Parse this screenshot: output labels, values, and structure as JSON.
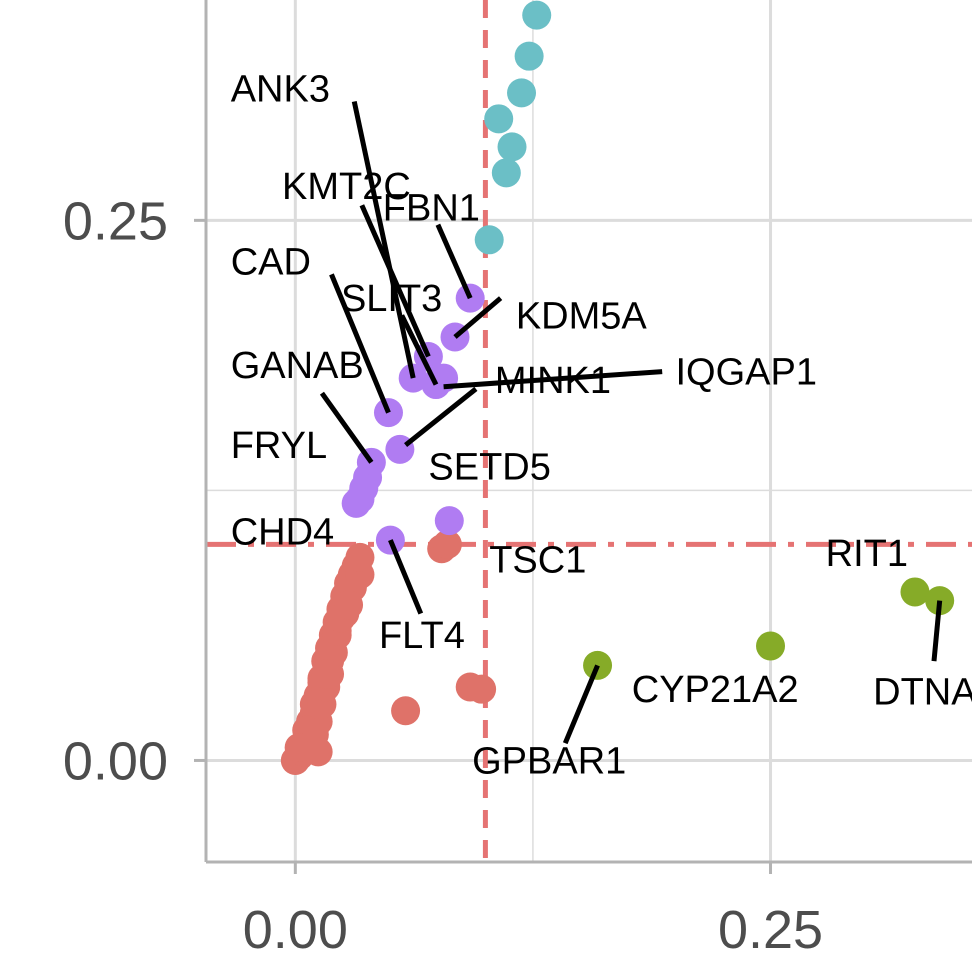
{
  "chart_data": {
    "type": "scatter",
    "title": "",
    "xlabel": "",
    "ylabel": "",
    "xlim": [
      -0.047,
      0.356
    ],
    "ylim": [
      -0.047,
      0.352
    ],
    "grid": true,
    "x_ticks": [
      {
        "value": 0.0,
        "label": "0.00"
      },
      {
        "value": 0.25,
        "label": "0.25"
      }
    ],
    "y_ticks": [
      {
        "value": 0.0,
        "label": "0.00"
      },
      {
        "value": 0.25,
        "label": "0.25"
      }
    ],
    "minor_x": [
      0.125
    ],
    "minor_y": [
      0.125
    ],
    "thresholds": {
      "x": 0.1,
      "y": 0.1,
      "color": "#E57373"
    },
    "colors": {
      "red": "#DF7269",
      "purple": "#B07CF2",
      "cyan": "#6BBFC6",
      "green": "#86AB28",
      "grid": "#dcdcdc",
      "axis": "#b3b3b3",
      "text": "#4d4d4d"
    },
    "series": [
      {
        "color": "red",
        "points": [
          [
            0.0,
            0.0
          ],
          [
            0.002,
            0.002
          ],
          [
            0.004,
            0.006
          ],
          [
            0.006,
            0.01
          ],
          [
            0.008,
            0.016
          ],
          [
            0.01,
            0.022
          ],
          [
            0.012,
            0.03
          ],
          [
            0.014,
            0.038
          ],
          [
            0.016,
            0.046
          ],
          [
            0.018,
            0.052
          ],
          [
            0.02,
            0.058
          ],
          [
            0.022,
            0.064
          ],
          [
            0.024,
            0.07
          ],
          [
            0.026,
            0.076
          ],
          [
            0.028,
            0.082
          ],
          [
            0.03,
            0.086
          ],
          [
            0.032,
            0.09
          ],
          [
            0.03,
            0.08
          ],
          [
            0.026,
            0.068
          ],
          [
            0.022,
            0.058
          ],
          [
            0.018,
            0.046
          ],
          [
            0.014,
            0.036
          ],
          [
            0.01,
            0.026
          ],
          [
            0.008,
            0.018
          ],
          [
            0.01,
            0.012
          ],
          [
            0.012,
            0.018
          ],
          [
            0.014,
            0.026
          ],
          [
            0.016,
            0.034
          ],
          [
            0.018,
            0.04
          ],
          [
            0.02,
            0.05
          ],
          [
            0.022,
            0.06
          ],
          [
            0.024,
            0.066
          ],
          [
            0.004,
            0.004
          ],
          [
            0.006,
            0.008
          ],
          [
            0.008,
            0.012
          ],
          [
            0.034,
            0.086
          ],
          [
            0.034,
            0.094
          ],
          [
            0.028,
            0.072
          ],
          [
            0.016,
            0.04
          ],
          [
            0.006,
            0.014
          ],
          [
            0.002,
            0.006
          ],
          [
            0.012,
            0.004
          ],
          [
            0.058,
            0.023
          ],
          [
            0.092,
            0.034
          ],
          [
            0.098,
            0.033
          ],
          [
            0.077,
            0.098
          ],
          [
            0.08,
            0.1
          ]
        ]
      },
      {
        "color": "purple",
        "points": [
          [
            0.049,
            0.161
          ],
          [
            0.062,
            0.177
          ],
          [
            0.07,
            0.187
          ],
          [
            0.078,
            0.177
          ],
          [
            0.084,
            0.196
          ],
          [
            0.092,
            0.214
          ],
          [
            0.074,
            0.174
          ],
          [
            0.055,
            0.144
          ],
          [
            0.04,
            0.138
          ],
          [
            0.038,
            0.131
          ],
          [
            0.036,
            0.126
          ],
          [
            0.034,
            0.121
          ],
          [
            0.032,
            0.119
          ],
          [
            0.05,
            0.102
          ],
          [
            0.081,
            0.111
          ]
        ]
      },
      {
        "color": "cyan",
        "points": [
          [
            0.102,
            0.241
          ],
          [
            0.111,
            0.272
          ],
          [
            0.114,
            0.284
          ],
          [
            0.107,
            0.297
          ],
          [
            0.119,
            0.309
          ],
          [
            0.123,
            0.326
          ],
          [
            0.127,
            0.345
          ]
        ]
      },
      {
        "color": "green",
        "points": [
          [
            0.159,
            0.044
          ],
          [
            0.25,
            0.053
          ],
          [
            0.326,
            0.078
          ],
          [
            0.339,
            0.074
          ]
        ]
      }
    ],
    "labels": [
      {
        "text": "ANK3",
        "x": -0.034,
        "y": 0.305,
        "line_from": [
          0.031,
          0.305
        ],
        "line_to": [
          0.062,
          0.177
        ]
      },
      {
        "text": "KMT2C",
        "x": -0.007,
        "y": 0.26,
        "line_from": [
          0.035,
          0.257
        ],
        "line_to": [
          0.07,
          0.187
        ]
      },
      {
        "text": "FBN1",
        "x": 0.046,
        "y": 0.25,
        "line_from": [
          0.075,
          0.248
        ],
        "line_to": [
          0.092,
          0.214
        ]
      },
      {
        "text": "CAD",
        "x": -0.034,
        "y": 0.225,
        "line_from": [
          0.019,
          0.225
        ],
        "line_to": [
          0.049,
          0.161
        ]
      },
      {
        "text": "SLIT3",
        "x": 0.024,
        "y": 0.208,
        "line_from": [
          0.056,
          0.206
        ],
        "line_to": [
          0.074,
          0.174
        ]
      },
      {
        "text": "KDM5A",
        "x": 0.116,
        "y": 0.2,
        "line_from": [
          0.108,
          0.214
        ],
        "line_to": [
          0.084,
          0.196
        ]
      },
      {
        "text": "GANAB",
        "x": -0.034,
        "y": 0.177,
        "line_from": [
          0.014,
          0.17
        ],
        "line_to": [
          0.04,
          0.138
        ]
      },
      {
        "text": "IQGAP1",
        "x": 0.2,
        "y": 0.174,
        "line_from": [
          0.193,
          0.18
        ],
        "line_to": [
          0.078,
          0.173
        ]
      },
      {
        "text": "MINK1",
        "x": 0.105,
        "y": 0.17,
        "line_from": [
          0.095,
          0.172
        ],
        "line_to": [
          0.058,
          0.146
        ]
      },
      {
        "text": "FRYL",
        "x": -0.034,
        "y": 0.14,
        "line_from": [
          0.0,
          0.14
        ],
        "line_to": [
          0.0,
          0.14
        ]
      },
      {
        "text": "SETD5",
        "x": 0.07,
        "y": 0.13,
        "line_from": [
          0.0,
          0.13
        ],
        "line_to": [
          0.0,
          0.13
        ]
      },
      {
        "text": "CHD4",
        "x": -0.034,
        "y": 0.1,
        "line_from": [
          0.0,
          0.1
        ],
        "line_to": [
          0.0,
          0.1
        ]
      },
      {
        "text": "TSC1",
        "x": 0.102,
        "y": 0.087,
        "line_from": [
          0.0,
          0.087
        ],
        "line_to": [
          0.0,
          0.087
        ]
      },
      {
        "text": "RIT1",
        "x": 0.279,
        "y": 0.09,
        "line_from": [
          0.0,
          0.09
        ],
        "line_to": [
          0.0,
          0.09
        ]
      },
      {
        "text": "FLT4",
        "x": 0.044,
        "y": 0.052,
        "line_from": [
          0.066,
          0.068
        ],
        "line_to": [
          0.05,
          0.102
        ]
      },
      {
        "text": "CYP21A2",
        "x": 0.177,
        "y": 0.027,
        "line_from": [
          0.0,
          0.027
        ],
        "line_to": [
          0.0,
          0.027
        ]
      },
      {
        "text": "DTNA",
        "x": 0.304,
        "y": 0.026,
        "line_from": [
          0.336,
          0.046
        ],
        "line_to": [
          0.339,
          0.074
        ]
      },
      {
        "text": "GPBAR1",
        "x": 0.093,
        "y": -0.006,
        "line_from": [
          0.142,
          0.008
        ],
        "line_to": [
          0.159,
          0.044
        ]
      }
    ]
  }
}
